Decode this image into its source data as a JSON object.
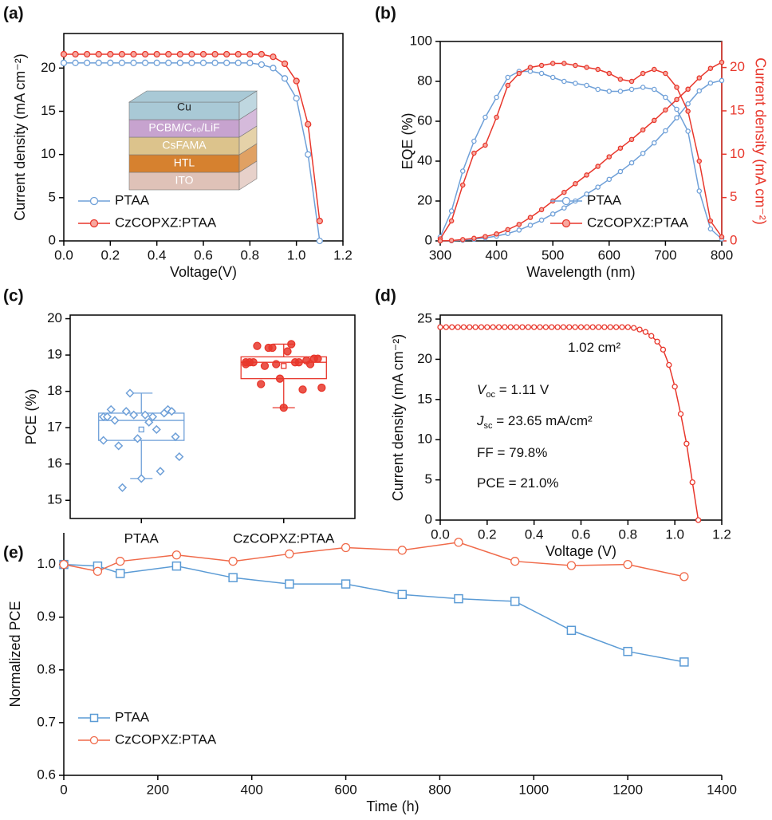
{
  "chart_data": [
    {
      "type": "line",
      "panel_label": "(a)",
      "x_label": "Voltage(V)",
      "y_label": "Current density (mA cm⁻²)",
      "frame": true,
      "legend_position": "lower-left",
      "xlim": [
        0,
        1.2
      ],
      "xticks": [
        {
          "value": 0,
          "label": "0.0"
        },
        0.2,
        0.4,
        0.6,
        0.8,
        {
          "value": 1,
          "label": "1.0"
        },
        1.2
      ],
      "ylim": [
        0,
        24
      ],
      "yticks": [
        0,
        5,
        10,
        15,
        20
      ],
      "x": [
        0,
        0.05,
        0.1,
        0.15,
        0.2,
        0.25,
        0.3,
        0.35,
        0.4,
        0.45,
        0.5,
        0.55,
        0.6,
        0.65,
        0.7,
        0.75,
        0.8,
        0.85,
        0.9,
        0.95,
        1.0,
        1.05,
        1.1
      ],
      "series": [
        {
          "name": "PTAA",
          "color": "#6fa0d8",
          "marker": "circle",
          "marker_fill": "#ffffff",
          "values": [
            20.6,
            20.6,
            20.6,
            20.6,
            20.6,
            20.6,
            20.6,
            20.6,
            20.6,
            20.6,
            20.6,
            20.6,
            20.6,
            20.6,
            20.6,
            20.6,
            20.6,
            20.4,
            20.0,
            18.8,
            16.5,
            10.0,
            0.0
          ]
        },
        {
          "name": "CzCOPXZ:PTAA",
          "color": "#e8372c",
          "marker": "circle",
          "marker_fill": "#f7a89f",
          "values": [
            21.6,
            21.6,
            21.6,
            21.6,
            21.6,
            21.6,
            21.6,
            21.6,
            21.6,
            21.6,
            21.6,
            21.6,
            21.6,
            21.6,
            21.6,
            21.6,
            21.6,
            21.6,
            21.3,
            20.5,
            18.5,
            13.5,
            2.3
          ]
        }
      ],
      "inset_layers": [
        {
          "label": "Cu",
          "color": "#a9c9d6"
        },
        {
          "label": "PCBM/C₆₀/LiF",
          "color": "#c7a3cf"
        },
        {
          "label": "CsFAMA",
          "color": "#dcc38c"
        },
        {
          "label": "HTL",
          "color": "#d6812f"
        },
        {
          "label": "ITO",
          "color": "#dfc2b8"
        }
      ]
    },
    {
      "type": "line",
      "panel_label": "(b)",
      "x_label": "Wavelength (nm)",
      "y_label": "EQE (%)",
      "y2_label": "Current density (mA cm⁻²)",
      "y2_color": "#e8372c",
      "frame": true,
      "legend_position": "lower-right",
      "xlim": [
        300,
        800
      ],
      "xticks": [
        300,
        400,
        500,
        600,
        700,
        800
      ],
      "ylim": [
        0,
        100
      ],
      "yticks": [
        0,
        20,
        40,
        60,
        80,
        100
      ],
      "y2lim": [
        0,
        23
      ],
      "y2ticks": [
        0,
        5,
        10,
        15,
        20
      ],
      "x": [
        300,
        320,
        340,
        360,
        380,
        400,
        420,
        440,
        460,
        480,
        500,
        520,
        540,
        560,
        580,
        600,
        620,
        640,
        660,
        680,
        700,
        720,
        740,
        760,
        780,
        800
      ],
      "series": [
        {
          "name": "PTAA",
          "color": "#6fa0d8",
          "marker": "circle",
          "marker_fill": "#ffffff",
          "values": [
            2,
            15,
            35,
            50,
            62,
            72,
            82,
            85,
            85,
            84,
            82,
            80,
            79,
            78,
            76,
            75,
            75,
            76,
            77,
            76,
            72,
            66,
            55,
            25,
            6,
            1
          ],
          "integrated_values": [
            0,
            0.02,
            0.08,
            0.2,
            0.35,
            0.55,
            0.85,
            1.25,
            1.8,
            2.4,
            3.1,
            3.8,
            4.6,
            5.4,
            6.2,
            7.1,
            8.0,
            9.0,
            10.1,
            11.3,
            12.7,
            14.2,
            15.8,
            17.3,
            18.2,
            18.5
          ]
        },
        {
          "name": "CzCOPXZ:PTAA",
          "color": "#e8372c",
          "marker": "circle",
          "marker_fill": "#f7a89f",
          "values": [
            1,
            10,
            28,
            44,
            48,
            62,
            78,
            84,
            87,
            88,
            89,
            89,
            88,
            87,
            86,
            84,
            81,
            80,
            84,
            86,
            84,
            77,
            65,
            40,
            10,
            2
          ],
          "integrated_values": [
            0,
            0.05,
            0.15,
            0.3,
            0.5,
            0.8,
            1.3,
            1.9,
            2.7,
            3.6,
            4.6,
            5.6,
            6.6,
            7.6,
            8.6,
            9.7,
            10.7,
            11.7,
            12.8,
            13.9,
            15.1,
            16.3,
            17.5,
            18.8,
            19.9,
            20.6
          ]
        }
      ]
    },
    {
      "type": "box",
      "panel_label": "(c)",
      "y_label": "PCE (%)",
      "frame": true,
      "ylim": [
        14.5,
        20.1
      ],
      "yticks": [
        15,
        16,
        17,
        18,
        19,
        20
      ],
      "categories": [
        "PTAA",
        "CzCOPXZ:PTAA"
      ],
      "boxes": [
        {
          "color": "#6fa0d8",
          "marker": "diamond",
          "min": 15.6,
          "q1": 16.65,
          "median": 17.2,
          "q3": 17.4,
          "max": 17.95,
          "mean": 16.95,
          "values": [
            17.3,
            17.4,
            17.35,
            17.45,
            17.3,
            17.5,
            17.15,
            17.95,
            17.5,
            17.45,
            17.3,
            17.35,
            17.2,
            16.75,
            16.95,
            16.7,
            16.5,
            16.2,
            15.8,
            15.6,
            15.35,
            16.65
          ]
        },
        {
          "color": "#e8372c",
          "marker": "circle",
          "min": 17.55,
          "q1": 18.35,
          "median": 18.8,
          "q3": 18.95,
          "max": 19.3,
          "mean": 18.7,
          "values": [
            18.8,
            18.85,
            19.1,
            19.2,
            18.8,
            18.75,
            19.3,
            19.2,
            18.8,
            18.9,
            18.8,
            18.75,
            19.25,
            18.9,
            18.8,
            18.35,
            18.2,
            18.1,
            18.05,
            17.55,
            18.7,
            18.75
          ]
        }
      ]
    },
    {
      "type": "line",
      "panel_label": "(d)",
      "x_label": "Voltage (V)",
      "y_label": "Current density (mA cm⁻²)",
      "frame": true,
      "xlim": [
        0,
        1.2
      ],
      "xticks": [
        {
          "value": 0,
          "label": "0.0"
        },
        0.2,
        0.4,
        0.6,
        0.8,
        {
          "value": 1,
          "label": "1.0"
        },
        1.2
      ],
      "ylim": [
        0,
        25.5
      ],
      "yticks": [
        0,
        5,
        10,
        15,
        20,
        25
      ],
      "x": [
        0,
        0.025,
        0.05,
        0.075,
        0.1,
        0.125,
        0.15,
        0.175,
        0.2,
        0.225,
        0.25,
        0.275,
        0.3,
        0.325,
        0.35,
        0.375,
        0.4,
        0.425,
        0.45,
        0.475,
        0.5,
        0.525,
        0.55,
        0.575,
        0.6,
        0.625,
        0.65,
        0.675,
        0.7,
        0.725,
        0.75,
        0.775,
        0.8,
        0.825,
        0.85,
        0.875,
        0.9,
        0.925,
        0.95,
        0.975,
        1.0,
        1.025,
        1.05,
        1.075,
        1.1
      ],
      "series": [
        {
          "color": "#e8372c",
          "marker": "circle",
          "marker_fill": "#ffffff",
          "values": [
            24,
            24,
            24,
            24,
            24,
            24,
            24,
            24,
            24,
            24,
            24,
            24,
            24,
            24,
            24,
            24,
            24,
            24,
            24,
            24,
            24,
            24,
            24,
            24,
            24,
            24,
            24,
            24,
            24,
            24,
            24,
            24,
            24,
            23.9,
            23.7,
            23.4,
            22.9,
            22.2,
            21.2,
            19.3,
            16.6,
            13.2,
            9.5,
            4.7,
            0.0
          ]
        }
      ],
      "annotations": [
        {
          "text": "1.02 cm²"
        },
        {
          "symbol": "V",
          "subscript": "oc",
          "text": " = 1.11 V"
        },
        {
          "symbol": "J",
          "subscript": "sc",
          "text": " = 23.65 mA/cm²"
        },
        {
          "text": "FF = 79.8%"
        },
        {
          "text": "PCE = 21.0%"
        }
      ]
    },
    {
      "type": "line",
      "panel_label": "(e)",
      "x_label": "Time (h)",
      "y_label": "Normalized PCE",
      "frame": false,
      "legend_position": "lower-left",
      "xlim": [
        0,
        1400
      ],
      "xticks": [
        0,
        200,
        400,
        600,
        800,
        1000,
        1200,
        1400
      ],
      "ylim": [
        0.6,
        1.06
      ],
      "yticks": [
        0.6,
        0.7,
        0.8,
        0.9,
        {
          "value": 1,
          "label": "1.0"
        }
      ],
      "x": [
        0,
        72,
        120,
        240,
        360,
        480,
        600,
        720,
        840,
        960,
        1080,
        1200,
        1320
      ],
      "series": [
        {
          "name": "PTAA",
          "color": "#5b9bd5",
          "marker": "square",
          "marker_fill": "#ffffff",
          "values": [
            1.0,
            0.997,
            0.983,
            0.997,
            0.975,
            0.963,
            0.963,
            0.943,
            0.935,
            0.93,
            0.875,
            0.835,
            0.815
          ]
        },
        {
          "name": "CzCOPXZ:PTAA",
          "color": "#f06a4a",
          "marker": "circle",
          "marker_fill": "#ffffff",
          "values": [
            1.0,
            0.987,
            1.006,
            1.018,
            1.006,
            1.02,
            1.032,
            1.027,
            1.042,
            1.006,
            0.998,
            1.0,
            0.977
          ]
        }
      ]
    }
  ]
}
